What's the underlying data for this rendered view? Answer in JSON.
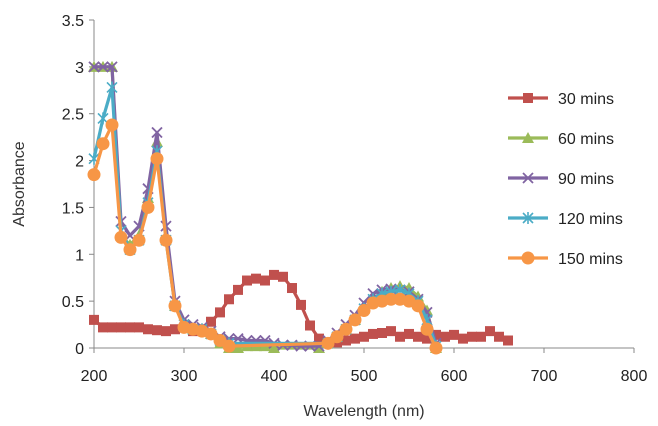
{
  "chart_data": {
    "type": "line",
    "title": "",
    "xlabel": "Wavelength (nm)",
    "ylabel": "Absorbance",
    "xlim": [
      200,
      800
    ],
    "ylim": [
      0,
      3.5
    ],
    "x_ticks": [
      200,
      300,
      400,
      500,
      600,
      700,
      800
    ],
    "x_tick_labels": [
      "200",
      "300",
      "400",
      "500",
      "600",
      "700",
      "800"
    ],
    "y_ticks": [
      0,
      0.5,
      1,
      1.5,
      2,
      2.5,
      3,
      3.5
    ],
    "y_tick_labels": [
      "0",
      "0.5",
      "1",
      "1.5",
      "2",
      "2.5",
      "3",
      "3.5"
    ],
    "grid": false,
    "legend_position": "right",
    "series": [
      {
        "name": "30 mins",
        "color": "#c0504d",
        "marker": "square",
        "points": [
          [
            200,
            0.3
          ],
          [
            210,
            0.22
          ],
          [
            220,
            0.22
          ],
          [
            230,
            0.22
          ],
          [
            240,
            0.22
          ],
          [
            250,
            0.22
          ],
          [
            260,
            0.2
          ],
          [
            270,
            0.19
          ],
          [
            280,
            0.18
          ],
          [
            290,
            0.2
          ],
          [
            300,
            0.22
          ],
          [
            310,
            0.18
          ],
          [
            320,
            0.2
          ],
          [
            330,
            0.28
          ],
          [
            340,
            0.38
          ],
          [
            350,
            0.52
          ],
          [
            360,
            0.62
          ],
          [
            370,
            0.72
          ],
          [
            380,
            0.74
          ],
          [
            390,
            0.72
          ],
          [
            400,
            0.78
          ],
          [
            410,
            0.76
          ],
          [
            420,
            0.64
          ],
          [
            430,
            0.46
          ],
          [
            440,
            0.24
          ],
          [
            450,
            0.1
          ],
          [
            460,
            0.05
          ],
          [
            470,
            0.06
          ],
          [
            480,
            0.08
          ],
          [
            490,
            0.1
          ],
          [
            500,
            0.12
          ],
          [
            510,
            0.15
          ],
          [
            520,
            0.16
          ],
          [
            530,
            0.18
          ],
          [
            540,
            0.12
          ],
          [
            550,
            0.15
          ],
          [
            560,
            0.12
          ],
          [
            570,
            0.1
          ],
          [
            580,
            0.14
          ],
          [
            590,
            0.12
          ],
          [
            600,
            0.14
          ],
          [
            610,
            0.1
          ],
          [
            620,
            0.12
          ],
          [
            630,
            0.12
          ],
          [
            640,
            0.18
          ],
          [
            650,
            0.12
          ],
          [
            660,
            0.08
          ]
        ]
      },
      {
        "name": "60 mins",
        "color": "#9bbb59",
        "marker": "triangle",
        "points": [
          [
            200,
            3.0
          ],
          [
            210,
            3.0
          ],
          [
            220,
            3.0
          ],
          [
            230,
            1.2
          ],
          [
            240,
            1.1
          ],
          [
            250,
            1.2
          ],
          [
            260,
            1.6
          ],
          [
            270,
            2.2
          ],
          [
            280,
            1.2
          ],
          [
            290,
            0.45
          ],
          [
            300,
            0.25
          ],
          [
            310,
            0.2
          ],
          [
            320,
            0.2
          ],
          [
            330,
            0.15
          ],
          [
            340,
            0.05
          ],
          [
            350,
            0.0
          ],
          [
            360,
            0.0
          ],
          [
            370,
            0.02
          ],
          [
            380,
            0.02
          ],
          [
            390,
            0.02
          ],
          [
            400,
            0.0
          ],
          [
            450,
            0.0
          ],
          [
            460,
            0.05
          ],
          [
            470,
            0.12
          ],
          [
            480,
            0.2
          ],
          [
            490,
            0.3
          ],
          [
            500,
            0.42
          ],
          [
            510,
            0.52
          ],
          [
            520,
            0.6
          ],
          [
            530,
            0.64
          ],
          [
            540,
            0.66
          ],
          [
            550,
            0.64
          ],
          [
            560,
            0.55
          ],
          [
            570,
            0.4
          ],
          [
            580,
            0.0
          ]
        ]
      },
      {
        "name": "90 mins",
        "color": "#8064a2",
        "marker": "x",
        "points": [
          [
            200,
            3.0
          ],
          [
            210,
            3.0
          ],
          [
            220,
            3.0
          ],
          [
            230,
            1.35
          ],
          [
            240,
            1.2
          ],
          [
            250,
            1.3
          ],
          [
            260,
            1.7
          ],
          [
            270,
            2.3
          ],
          [
            280,
            1.3
          ],
          [
            290,
            0.5
          ],
          [
            300,
            0.3
          ],
          [
            310,
            0.25
          ],
          [
            320,
            0.22
          ],
          [
            330,
            0.18
          ],
          [
            340,
            0.12
          ],
          [
            350,
            0.1
          ],
          [
            360,
            0.1
          ],
          [
            370,
            0.08
          ],
          [
            380,
            0.08
          ],
          [
            390,
            0.08
          ],
          [
            400,
            0.05
          ],
          [
            410,
            0.03
          ],
          [
            420,
            0.03
          ],
          [
            430,
            0.02
          ],
          [
            440,
            0.02
          ],
          [
            450,
            0.02
          ],
          [
            460,
            0.08
          ],
          [
            470,
            0.16
          ],
          [
            480,
            0.25
          ],
          [
            490,
            0.35
          ],
          [
            500,
            0.48
          ],
          [
            510,
            0.58
          ],
          [
            520,
            0.62
          ],
          [
            530,
            0.63
          ],
          [
            540,
            0.62
          ],
          [
            550,
            0.6
          ],
          [
            560,
            0.52
          ],
          [
            570,
            0.38
          ],
          [
            580,
            0.05
          ]
        ]
      },
      {
        "name": "120 mins",
        "color": "#4bacc6",
        "marker": "asterisk",
        "points": [
          [
            200,
            2.02
          ],
          [
            210,
            2.45
          ],
          [
            220,
            2.78
          ],
          [
            230,
            1.25
          ],
          [
            240,
            1.05
          ],
          [
            250,
            1.15
          ],
          [
            260,
            1.55
          ],
          [
            270,
            2.1
          ],
          [
            280,
            1.15
          ],
          [
            290,
            0.45
          ],
          [
            300,
            0.25
          ],
          [
            310,
            0.2
          ],
          [
            320,
            0.2
          ],
          [
            330,
            0.15
          ],
          [
            340,
            0.08
          ],
          [
            350,
            0.05
          ],
          [
            460,
            0.05
          ],
          [
            470,
            0.12
          ],
          [
            480,
            0.2
          ],
          [
            490,
            0.3
          ],
          [
            500,
            0.42
          ],
          [
            510,
            0.52
          ],
          [
            520,
            0.58
          ],
          [
            530,
            0.6
          ],
          [
            540,
            0.62
          ],
          [
            550,
            0.58
          ],
          [
            560,
            0.5
          ],
          [
            570,
            0.3
          ],
          [
            580,
            0.02
          ]
        ]
      },
      {
        "name": "150 mins",
        "color": "#f79646",
        "marker": "circle",
        "points": [
          [
            200,
            1.85
          ],
          [
            210,
            2.18
          ],
          [
            220,
            2.38
          ],
          [
            230,
            1.18
          ],
          [
            240,
            1.05
          ],
          [
            250,
            1.15
          ],
          [
            260,
            1.5
          ],
          [
            270,
            2.02
          ],
          [
            280,
            1.15
          ],
          [
            290,
            0.45
          ],
          [
            300,
            0.22
          ],
          [
            310,
            0.2
          ],
          [
            320,
            0.18
          ],
          [
            330,
            0.15
          ],
          [
            340,
            0.08
          ],
          [
            350,
            0.02
          ],
          [
            460,
            0.05
          ],
          [
            470,
            0.12
          ],
          [
            480,
            0.2
          ],
          [
            490,
            0.3
          ],
          [
            500,
            0.4
          ],
          [
            510,
            0.48
          ],
          [
            520,
            0.5
          ],
          [
            530,
            0.52
          ],
          [
            540,
            0.52
          ],
          [
            550,
            0.5
          ],
          [
            560,
            0.45
          ],
          [
            570,
            0.2
          ],
          [
            580,
            0.0
          ]
        ]
      }
    ]
  }
}
